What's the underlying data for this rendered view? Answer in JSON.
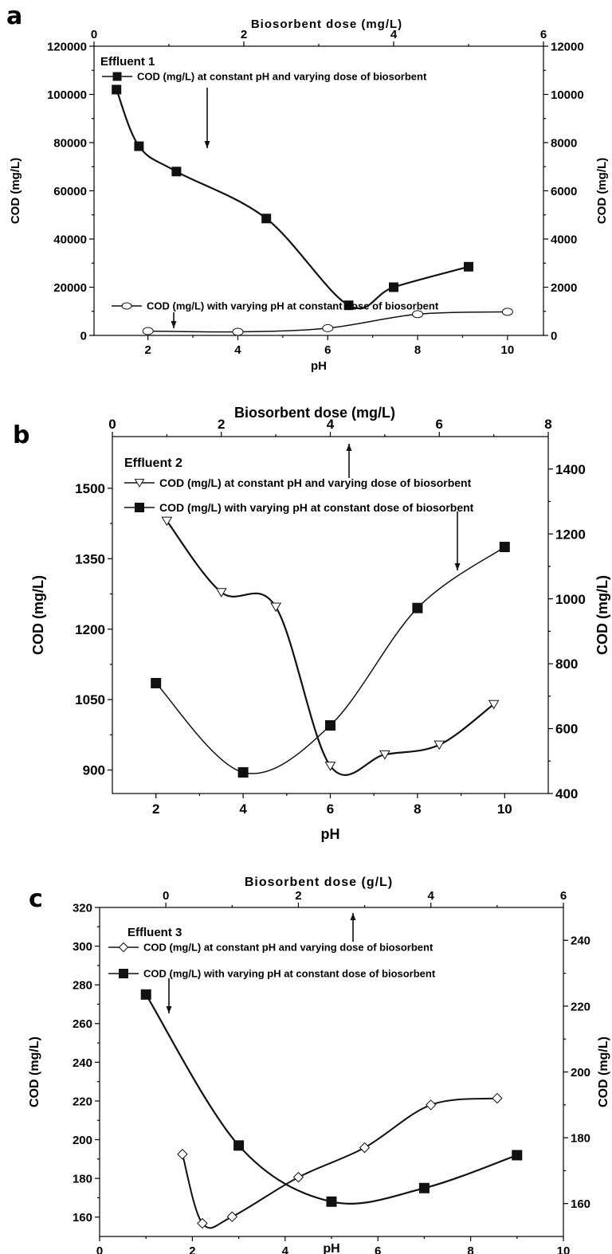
{
  "chart_data": [
    {
      "panel": "a",
      "type": "line",
      "annotation": "Effluent 1",
      "bottom_axis": {
        "label": "pH",
        "range": [
          0.8,
          10.8
        ],
        "ticks": [
          2,
          4,
          6,
          8,
          10
        ]
      },
      "top_axis": {
        "label": "Biosorbent dose (mg/L)",
        "range": [
          0,
          6
        ],
        "ticks": [
          0,
          2,
          4,
          6
        ]
      },
      "left_axis": {
        "label": "COD (mg/L)",
        "range": [
          0,
          120000
        ],
        "ticks": [
          0,
          20000,
          40000,
          60000,
          80000,
          100000,
          120000
        ]
      },
      "right_axis": {
        "label": "COD (mg/L)",
        "range": [
          0,
          12000
        ],
        "ticks": [
          0,
          2000,
          4000,
          6000,
          8000,
          10000,
          12000
        ]
      },
      "series": [
        {
          "name": "COD (mg/L) at constant pH and varying dose of biosorbent",
          "marker": "filled-square",
          "x_axis": "top",
          "y_axis": "right",
          "x": [
            0.3,
            0.6,
            1.1,
            2.3,
            3.4,
            4.0,
            5.0
          ],
          "y": [
            10200,
            7850,
            6800,
            4850,
            1250,
            2000,
            2850
          ]
        },
        {
          "name": "COD (mg/L) with varying pH at constant dose of biosorbent",
          "marker": "open-circle",
          "x_axis": "bottom",
          "y_axis": "left",
          "x": [
            2,
            4,
            6,
            8,
            10
          ],
          "y": [
            1800,
            1500,
            3000,
            8800,
            9800
          ]
        }
      ]
    },
    {
      "panel": "b",
      "type": "line",
      "annotation": "Effluent 2",
      "bottom_axis": {
        "label": "pH",
        "range": [
          1,
          11
        ],
        "ticks": [
          2,
          4,
          6,
          8,
          10
        ]
      },
      "top_axis": {
        "label": "Biosorbent dose (mg/L)",
        "range": [
          0,
          8
        ],
        "ticks": [
          0,
          2,
          4,
          6,
          8
        ]
      },
      "left_axis": {
        "label": "COD (mg/L)",
        "range": [
          850,
          1610
        ],
        "ticks": [
          900,
          1050,
          1200,
          1350,
          1500
        ]
      },
      "right_axis": {
        "label": "COD (mg/L)",
        "range": [
          400,
          1500
        ],
        "ticks": [
          400,
          600,
          800,
          1000,
          1200,
          1400
        ]
      },
      "series": [
        {
          "name": "COD (mg/L) at constant pH and varying dose of biosorbent",
          "marker": "open-triangle-down",
          "x_axis": "top",
          "y_axis": "right",
          "x": [
            1.0,
            2.0,
            3.0,
            4.0,
            5.0,
            6.0,
            7.0
          ],
          "y": [
            1240,
            1020,
            975,
            485,
            520,
            550,
            675
          ]
        },
        {
          "name": "COD (mg/L) with varying pH at constant dose of biosorbent",
          "marker": "filled-square",
          "x_axis": "bottom",
          "y_axis": "left",
          "x": [
            2,
            4,
            6,
            8,
            10
          ],
          "y": [
            1085,
            895,
            995,
            1245,
            1375
          ]
        }
      ]
    },
    {
      "panel": "c",
      "type": "line",
      "annotation": "Effluent 3",
      "bottom_axis": {
        "label": "pH",
        "range": [
          0,
          10
        ],
        "ticks": [
          0,
          2,
          4,
          6,
          8,
          10
        ]
      },
      "top_axis": {
        "label": "Biosorbent dose (g/L)",
        "range": [
          -1,
          6
        ],
        "ticks": [
          0,
          2,
          4,
          6
        ]
      },
      "left_axis": {
        "label": "COD (mg/L)",
        "range": [
          150,
          320
        ],
        "ticks": [
          160,
          180,
          200,
          220,
          240,
          260,
          280,
          300,
          320
        ]
      },
      "right_axis": {
        "label": "COD (mg/L)",
        "range": [
          150,
          250
        ],
        "ticks": [
          160,
          180,
          200,
          220,
          240
        ]
      },
      "series": [
        {
          "name": "COD (mg/L) at constant pH and varying dose of biosorbent",
          "marker": "open-diamond",
          "x_axis": "top",
          "y_axis": "right",
          "x": [
            0.25,
            0.55,
            1.0,
            2.0,
            3.0,
            4.0,
            5.0
          ],
          "y": [
            175,
            154,
            156,
            168,
            177,
            190,
            192
          ]
        },
        {
          "name": "COD (mg/L) with varying pH at constant dose of biosorbent",
          "marker": "filled-square",
          "x_axis": "bottom",
          "y_axis": "left",
          "x": [
            1,
            3,
            5,
            7,
            9
          ],
          "y": [
            275,
            197,
            168,
            175,
            192
          ]
        }
      ]
    }
  ],
  "labels": {
    "a": "a",
    "b": "b",
    "c": "c"
  }
}
